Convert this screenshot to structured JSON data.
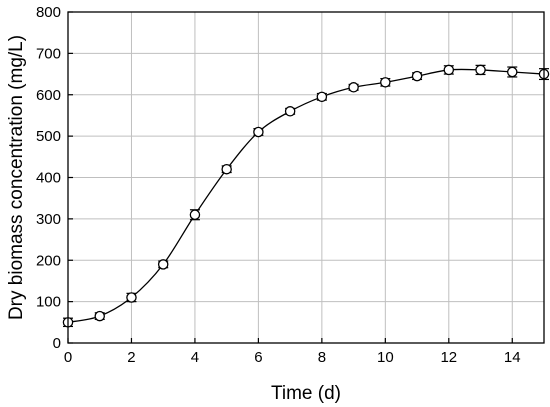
{
  "chart_data": {
    "type": "line",
    "xlabel": "Time (d)",
    "ylabel": "Dry biomass concentration (mg/L)",
    "xlim": [
      0,
      15
    ],
    "ylim": [
      0,
      800
    ],
    "x_ticks": [
      0,
      2,
      4,
      6,
      8,
      10,
      12,
      14
    ],
    "y_ticks": [
      0,
      100,
      200,
      300,
      400,
      500,
      600,
      700,
      800
    ],
    "grid": true,
    "marker": "open-circle",
    "series": [
      {
        "x": [
          0,
          1,
          2,
          3,
          4,
          5,
          6,
          7,
          8,
          9,
          10,
          11,
          12,
          13,
          14,
          15
        ],
        "y": [
          50,
          65,
          110,
          190,
          310,
          420,
          510,
          560,
          595,
          618,
          630,
          645,
          660,
          660,
          655,
          650
        ],
        "error": [
          10,
          8,
          10,
          8,
          12,
          8,
          8,
          7,
          8,
          7,
          9,
          8,
          10,
          11,
          12,
          13
        ]
      }
    ]
  }
}
